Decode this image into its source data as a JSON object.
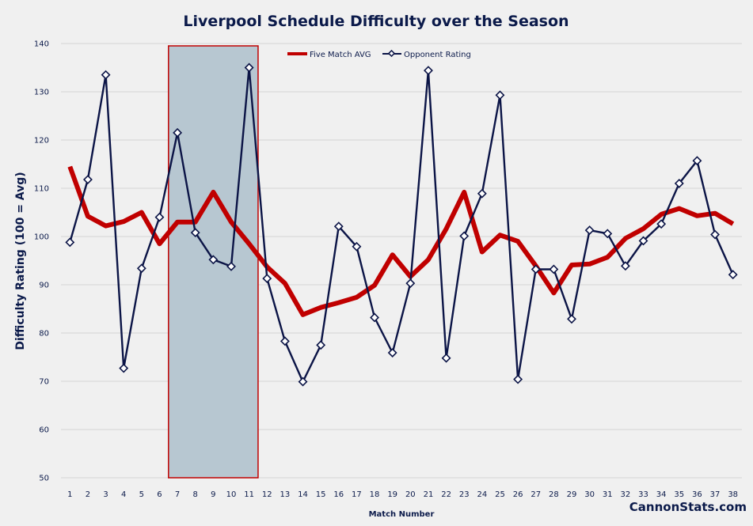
{
  "chart_data": {
    "type": "line",
    "title": "Liverpool Schedule Difficulty over the Season",
    "xlabel": "Match Number",
    "ylabel": "Difficulty Rating (100 = Avg)",
    "ylim": [
      50,
      140
    ],
    "yticks": [
      50,
      60,
      70,
      80,
      90,
      100,
      110,
      120,
      130,
      140
    ],
    "x": [
      1,
      2,
      3,
      4,
      5,
      6,
      7,
      8,
      9,
      10,
      11,
      12,
      13,
      14,
      15,
      16,
      17,
      18,
      19,
      20,
      21,
      22,
      23,
      24,
      25,
      26,
      27,
      28,
      29,
      30,
      31,
      32,
      33,
      34,
      35,
      36,
      37,
      38
    ],
    "grid": true,
    "legend_position": "top-center",
    "series": [
      {
        "name": "Five Match AVG",
        "color": "#c00000",
        "values": [
          114.5,
          104.2,
          102.2,
          103.1,
          105,
          98.5,
          103,
          103,
          109.2,
          103,
          98.5,
          93.7,
          90.3,
          83.8,
          85.3,
          86.3,
          87.4,
          89.9,
          96.2,
          91.7,
          95.2,
          101.6,
          109.2,
          96.8,
          100.3,
          99,
          93.9,
          88.3,
          94.1,
          94.3,
          95.7,
          99.6,
          101.6,
          104.6,
          105.8,
          104.3,
          104.8,
          102.6
        ]
      },
      {
        "name": "Opponent Rating",
        "color": "#0b1446",
        "values": [
          98.8,
          111.8,
          133.5,
          72.7,
          93.4,
          104,
          121.5,
          100.8,
          95.2,
          93.8,
          135,
          91.3,
          78.3,
          69.9,
          77.5,
          102.1,
          97.9,
          83.2,
          75.9,
          90.3,
          134.4,
          74.8,
          100.1,
          108.9,
          129.3,
          70.4,
          93.2,
          93.2,
          82.9,
          101.3,
          100.6,
          93.9,
          99.1,
          102.6,
          111,
          115.7,
          100.4,
          92.1
        ]
      }
    ],
    "highlight": {
      "x_from": 7,
      "x_to": 11,
      "fill": "#b7c7d1",
      "stroke": "#c00000"
    }
  },
  "brand": "CannonStats.com"
}
